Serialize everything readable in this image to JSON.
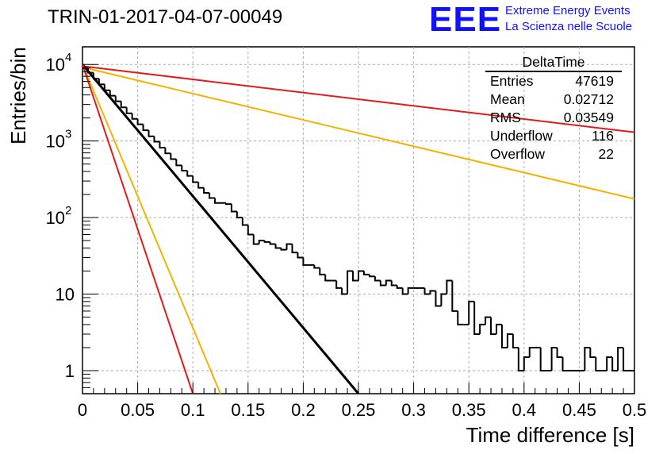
{
  "header": {
    "title": "TRIN-01-2017-04-07-00049",
    "logo_text": "EEE",
    "logo_line1": "Extreme Energy Events",
    "logo_line2": "La Scienza nelle Scuole"
  },
  "stats": {
    "name": "DeltaTime",
    "rows": [
      {
        "label": "Entries",
        "value": "47619"
      },
      {
        "label": "Mean",
        "value": "0.02712"
      },
      {
        "label": "RMS",
        "value": "0.03549"
      },
      {
        "label": "Underflow",
        "value": "116"
      },
      {
        "label": "Overflow",
        "value": "22"
      }
    ]
  },
  "chart_data": {
    "type": "line",
    "title": "TRIN-01-2017-04-07-00049",
    "xlabel": "Time difference [s]",
    "ylabel": "Entries/bin",
    "xlim": [
      0,
      0.5
    ],
    "ylim": [
      0.5,
      17000
    ],
    "log_y": true,
    "grid": true,
    "x_ticks": [
      "0",
      "0.05",
      "0.1",
      "0.15",
      "0.2",
      "0.25",
      "0.3",
      "0.35",
      "0.4",
      "0.45",
      "0.5"
    ],
    "y_ticks": [
      {
        "value": 1,
        "base": "1",
        "exp": ""
      },
      {
        "value": 10,
        "base": "10",
        "exp": ""
      },
      {
        "value": 100,
        "base": "10",
        "exp": "2"
      },
      {
        "value": 1000,
        "base": "10",
        "exp": "3"
      },
      {
        "value": 10000,
        "base": "10",
        "exp": "4"
      }
    ],
    "histogram": {
      "bin_width": 0.005,
      "x_start": 0,
      "values": [
        9000,
        7800,
        6500,
        5500,
        4600,
        3900,
        3300,
        2750,
        2300,
        1950,
        1650,
        1380,
        1150,
        980,
        820,
        690,
        580,
        480,
        410,
        350,
        290,
        245,
        210,
        180,
        155,
        155,
        150,
        120,
        100,
        80,
        60,
        45,
        50,
        48,
        45,
        40,
        38,
        45,
        35,
        30,
        24,
        24,
        22,
        18,
        15,
        15,
        12,
        10,
        20,
        15,
        20,
        18,
        17,
        15,
        13,
        15,
        13,
        12,
        10,
        12,
        12,
        12,
        10,
        11,
        7,
        10,
        15,
        6,
        4,
        4,
        8,
        3,
        4,
        5,
        3,
        4,
        2,
        3,
        2,
        1,
        1.5,
        2,
        2,
        1,
        1,
        2,
        1.5,
        1,
        1,
        1,
        1,
        2,
        1.5,
        1,
        1,
        1.5,
        1,
        2,
        1,
        1
      ]
    },
    "fits": [
      {
        "color": "#e31a1c",
        "x": [
          0,
          0.5
        ],
        "y": [
          9500,
          1300
        ]
      },
      {
        "color": "#f0b400",
        "x": [
          0,
          0.5
        ],
        "y": [
          9200,
          175
        ]
      },
      {
        "color": "#000000",
        "x": [
          0,
          0.25
        ],
        "y": [
          10000,
          0.5
        ]
      },
      {
        "color": "#f0b400",
        "x": [
          0,
          0.125
        ],
        "y": [
          10000,
          0.5
        ]
      },
      {
        "color": "#e31a1c",
        "x": [
          0,
          0.1
        ],
        "y": [
          10000,
          0.5
        ]
      }
    ]
  }
}
